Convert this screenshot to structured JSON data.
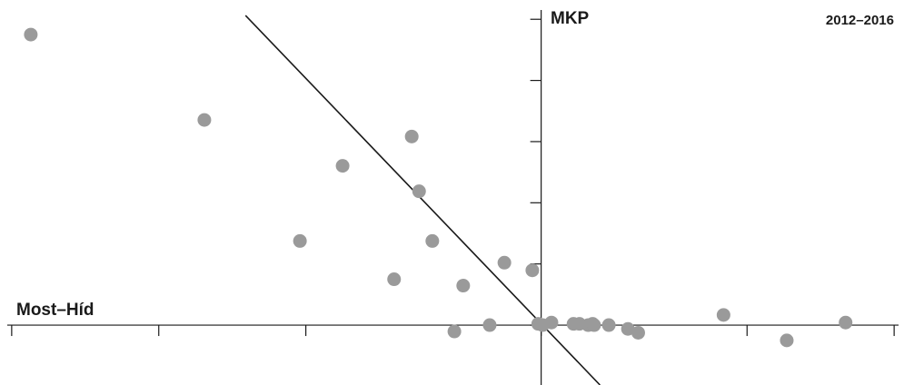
{
  "chart_data": {
    "type": "scatter",
    "title": "",
    "period": "2012–2016",
    "xlabel": "Most–Híd",
    "ylabel": "MKP",
    "xlim": [
      -3.63,
      2.43
    ],
    "ylim": [
      -0.47,
      2.48
    ],
    "x_ticks": [
      -3.6,
      -2.6,
      -1.6,
      -0.6,
      0.0,
      1.4,
      2.4
    ],
    "y_ticks": [
      0.0,
      0.48,
      0.96,
      1.44,
      1.92,
      2.4
    ],
    "grid": false,
    "points": [
      {
        "x": -3.47,
        "y": 2.28
      },
      {
        "x": -2.29,
        "y": 1.61
      },
      {
        "x": -1.64,
        "y": 0.66
      },
      {
        "x": -1.35,
        "y": 1.25
      },
      {
        "x": -1.0,
        "y": 0.36
      },
      {
        "x": -0.88,
        "y": 1.48
      },
      {
        "x": -0.83,
        "y": 1.05
      },
      {
        "x": -0.74,
        "y": 0.66
      },
      {
        "x": -0.59,
        "y": -0.05
      },
      {
        "x": -0.53,
        "y": 0.31
      },
      {
        "x": -0.35,
        "y": 0.0
      },
      {
        "x": -0.25,
        "y": 0.49
      },
      {
        "x": -0.06,
        "y": 0.43
      },
      {
        "x": -0.02,
        "y": 0.01
      },
      {
        "x": 0.01,
        "y": 0.0
      },
      {
        "x": 0.07,
        "y": 0.02
      },
      {
        "x": 0.22,
        "y": 0.01
      },
      {
        "x": 0.26,
        "y": 0.01
      },
      {
        "x": 0.32,
        "y": 0.0
      },
      {
        "x": 0.35,
        "y": 0.01
      },
      {
        "x": 0.36,
        "y": 0.0
      },
      {
        "x": 0.46,
        "y": 0.0
      },
      {
        "x": 0.59,
        "y": -0.03
      },
      {
        "x": 0.66,
        "y": -0.06
      },
      {
        "x": 1.24,
        "y": 0.08
      },
      {
        "x": 1.67,
        "y": -0.12
      },
      {
        "x": 2.07,
        "y": 0.02
      }
    ],
    "trend_line": {
      "x": [
        -2.01,
        0.4
      ],
      "y": [
        2.43,
        -0.47
      ]
    },
    "colors": {
      "points": "#9a9a9a",
      "axis": "#1a1a1a",
      "line": "#1a1a1a"
    }
  }
}
